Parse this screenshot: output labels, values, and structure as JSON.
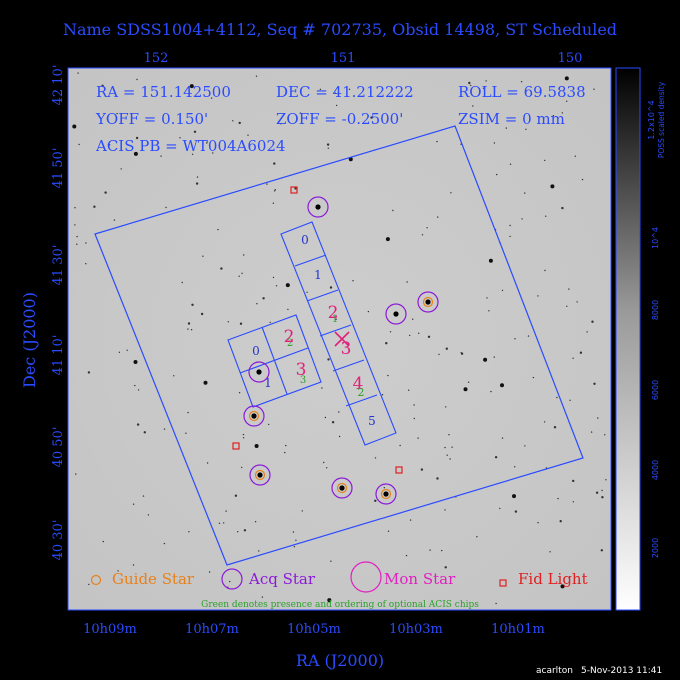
{
  "title": "Name SDSS1004+4112, Seq # 702735, Obsid 14498, ST Scheduled",
  "info": {
    "ra": "RA = 151.142500",
    "dec": "DEC = 41.212222",
    "roll": "ROLL = 69.5838",
    "yoff": "YOFF = 0.150'",
    "zoff": "ZOFF = -0.2500'",
    "zsim": "ZSIM = 0 mm",
    "acis_pb": "ACIS PB = WT004A6024"
  },
  "top_axis": {
    "ticks": [
      "152",
      "151",
      "150"
    ]
  },
  "bottom_axis": {
    "ticks": [
      "10h09m",
      "10h07m",
      "10h05m",
      "10h03m",
      "10h01m"
    ],
    "label": "RA (J2000)"
  },
  "left_axis": {
    "ticks": [
      "42 10'",
      "41 50'",
      "41 30'",
      "41 10'",
      "40 50'",
      "40 30'"
    ],
    "label": "Dec (J2000)"
  },
  "colorbar": {
    "label_line1": "1.2x10^4",
    "label_line2": "POSS scaled density",
    "ticks": [
      "10^4",
      "8000",
      "6000",
      "4000",
      "2000"
    ]
  },
  "chips": {
    "s_array": [
      "0",
      "1",
      "2",
      "3",
      "4",
      "5"
    ],
    "i_array": [
      "0",
      "1",
      "2",
      "3"
    ],
    "optional_s": [
      "1",
      "2"
    ],
    "optional_i": [
      "2",
      "3"
    ]
  },
  "legend": {
    "guide": "Guide Star",
    "acq": "Acq Star",
    "mon": "Mon Star",
    "fid": "Fid Light",
    "note": "Green denotes presence and ordering of optional ACIS chips"
  },
  "footer": {
    "user": "acarlton",
    "timestamp": "5-Nov-2013 11:41"
  },
  "colors": {
    "text_blue": "#2a4bff",
    "chip_label_blue": "#2233cc",
    "magenta": "#e0207a",
    "green": "#2aa02a",
    "purple": "#8a1ad8",
    "fid_red": "#e02020",
    "guide_orange": "#e8801a",
    "field_bg": "#c9c9c9"
  }
}
